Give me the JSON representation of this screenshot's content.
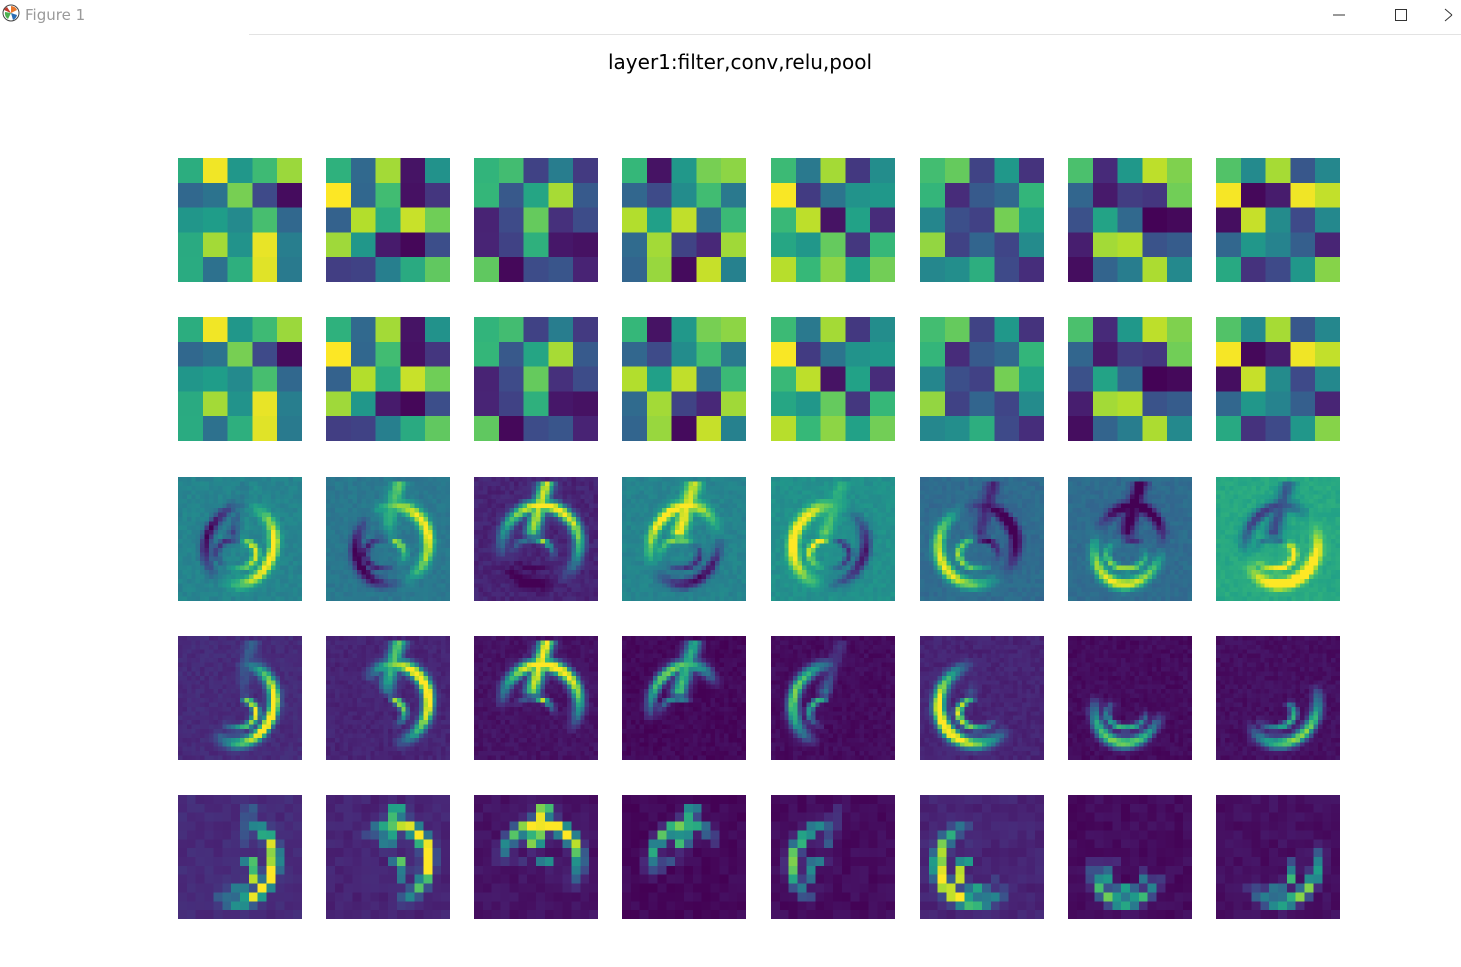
{
  "window": {
    "title": "Figure 1",
    "controls": [
      "minimize",
      "maximize",
      "close"
    ]
  },
  "figure": {
    "title": "layer1:filter,conv,relu,pool",
    "colormap": "viridis",
    "rows": [
      "filter",
      "filter",
      "conv",
      "relu",
      "pool"
    ],
    "columns": 8,
    "axes_visible": false
  },
  "colors": {
    "viridis_low": "#440154",
    "viridis_mid": "#21918c",
    "viridis_high": "#fde725"
  },
  "icons": {
    "app": "matplotlib-logo-icon",
    "minimize": "minimize-icon",
    "maximize": "maximize-icon",
    "close": "close-icon"
  }
}
